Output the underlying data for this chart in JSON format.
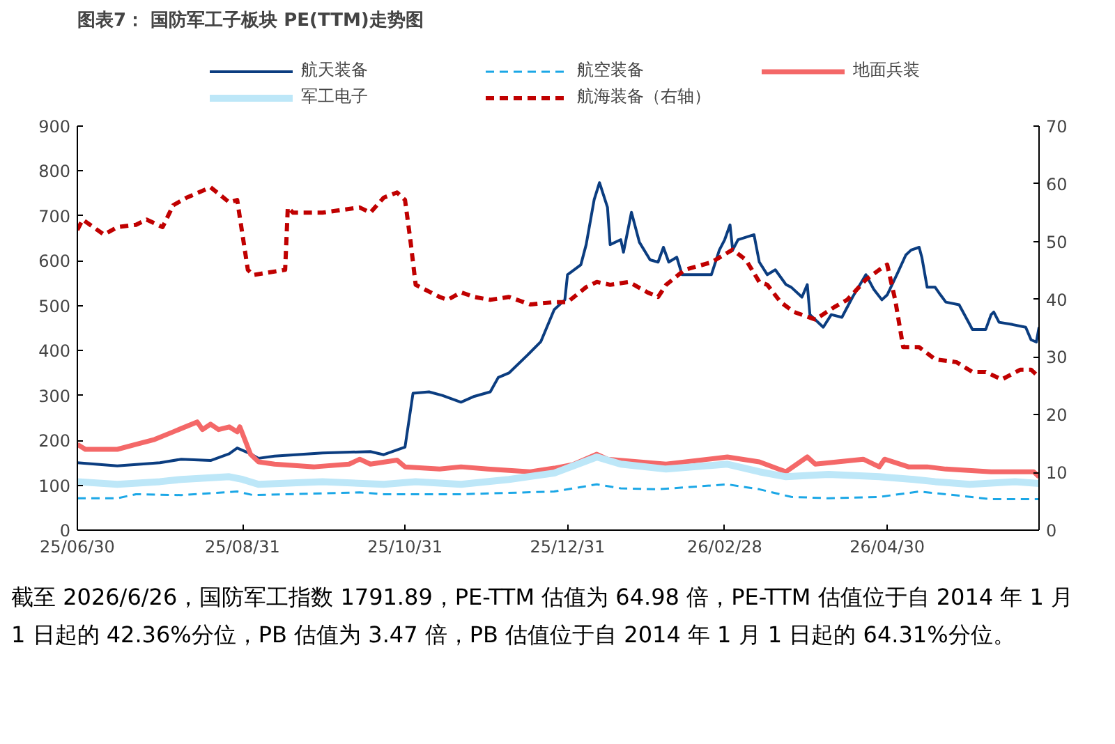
{
  "chart_data": {
    "type": "line",
    "title": "图表7：  国防军工子板块 PE(TTM)走势图",
    "annotations": [
      "截至 2026/6/26，国防军工指数 1791.89，PE-TTM 估值为 64.98 倍，PE-TTM 估值位于自 2014 年 1 月 1 日起的 42.36%分位，PB 估值为 3.47 倍，PB 估值位于自 2014 年 1 月 1 日起的 64.31%分位。"
    ],
    "xlim": [
      "2025-06-30",
      "2026-06-26"
    ],
    "xticks": [
      {
        "value": "2025-06-30",
        "label": "25/06/30"
      },
      {
        "value": "2025-08-31",
        "label": "25/08/31"
      },
      {
        "value": "2025-10-31",
        "label": "25/10/31"
      },
      {
        "value": "2025-12-31",
        "label": "25/12/31"
      },
      {
        "value": "2026-02-28",
        "label": "26/02/28"
      },
      {
        "value": "2026-04-30",
        "label": "26/04/30"
      }
    ],
    "ylim": [
      0,
      900
    ],
    "yticks": [
      0,
      100,
      200,
      300,
      400,
      500,
      600,
      700,
      800,
      900
    ],
    "y2lim": [
      0,
      70
    ],
    "y2ticks": [
      0,
      10,
      20,
      30,
      40,
      50,
      60,
      70
    ],
    "legend": "top",
    "grid": false,
    "series": [
      {
        "name": "航天装备",
        "color": "#0b3d80",
        "line_style": "solid",
        "x": [
          "2025-06-30",
          "2025-07-15",
          "2025-07-31",
          "2025-08-08",
          "2025-08-19",
          "2025-08-26",
          "2025-08-29",
          "2025-09-03",
          "2025-09-06",
          "2025-09-12",
          "2025-09-30",
          "2025-10-18",
          "2025-10-23",
          "2025-10-30",
          "2025-10-31",
          "2025-11-03",
          "2025-11-09",
          "2025-11-14",
          "2025-11-21",
          "2025-11-26",
          "2025-12-02",
          "2025-12-05",
          "2025-12-09",
          "2025-12-16",
          "2025-12-21",
          "2025-12-26",
          "2025-12-30",
          "2025-12-31",
          "2026-01-05",
          "2026-01-07",
          "2026-01-10",
          "2026-01-12",
          "2026-01-15",
          "2026-01-16",
          "2026-01-20",
          "2026-01-21",
          "2026-01-24",
          "2026-01-27",
          "2026-01-31",
          "2026-02-03",
          "2026-02-05",
          "2026-02-07",
          "2026-02-10",
          "2026-02-12",
          "2026-02-23",
          "2026-02-26",
          "2026-02-28",
          "2026-03-02",
          "2026-03-03",
          "2026-03-05",
          "2026-03-11",
          "2026-03-13",
          "2026-03-16",
          "2026-03-19",
          "2026-03-23",
          "2026-03-25",
          "2026-03-29",
          "2026-03-31",
          "2026-04-01",
          "2026-04-06",
          "2026-04-09",
          "2026-04-13",
          "2026-04-17",
          "2026-04-22",
          "2026-04-25",
          "2026-04-28",
          "2026-04-30",
          "2026-05-04",
          "2026-05-07",
          "2026-05-09",
          "2026-05-12",
          "2026-05-13",
          "2026-05-15",
          "2026-05-18",
          "2026-05-20",
          "2026-05-22",
          "2026-05-27",
          "2026-05-30",
          "2026-06-01",
          "2026-06-06",
          "2026-06-08",
          "2026-06-09",
          "2026-06-11",
          "2026-06-16",
          "2026-06-21",
          "2026-06-23",
          "2026-06-25",
          "2026-06-26"
        ],
        "values": [
          150,
          143,
          150,
          158,
          155,
          170,
          183,
          170,
          160,
          165,
          172,
          175,
          168,
          183,
          185,
          305,
          308,
          300,
          285,
          298,
          308,
          340,
          350,
          390,
          420,
          491,
          513,
          569,
          591,
          636,
          736,
          774,
          719,
          636,
          647,
          619,
          708,
          641,
          602,
          597,
          630,
          597,
          608,
          569,
          569,
          624,
          647,
          680,
          624,
          647,
          658,
          597,
          569,
          580,
          547,
          541,
          519,
          547,
          480,
          452,
          480,
          474,
          519,
          569,
          536,
          513,
          524,
          574,
          613,
          624,
          630,
          608,
          541,
          541,
          524,
          508,
          502,
          469,
          447,
          447,
          480,
          486,
          463,
          458,
          452,
          424,
          419,
          452
        ]
      },
      {
        "name": "航空装备",
        "color": "#1ba7e6",
        "line_style": "dashed",
        "x": [
          "2025-06-30",
          "2025-07-15",
          "2025-07-22",
          "2025-08-08",
          "2025-08-29",
          "2025-09-04",
          "2025-09-30",
          "2025-10-14",
          "2025-10-23",
          "2025-11-21",
          "2025-12-26",
          "2026-01-11",
          "2026-01-20",
          "2026-02-03",
          "2026-03-01",
          "2026-03-13",
          "2026-03-25",
          "2026-04-08",
          "2026-04-27",
          "2026-05-12",
          "2026-05-22",
          "2026-06-08",
          "2026-06-26"
        ],
        "values": [
          71,
          71,
          80,
          78,
          86,
          78,
          82,
          84,
          80,
          80,
          86,
          102,
          93,
          91,
          102,
          91,
          74,
          71,
          74,
          86,
          80,
          69,
          69
        ]
      },
      {
        "name": "地面兵装",
        "color": "#f46868",
        "line_style": "solid",
        "x": [
          "2025-06-30",
          "2025-07-03",
          "2025-07-15",
          "2025-07-22",
          "2025-07-29",
          "2025-08-05",
          "2025-08-14",
          "2025-08-16",
          "2025-08-19",
          "2025-08-22",
          "2025-08-26",
          "2025-08-29",
          "2025-08-30",
          "2025-09-03",
          "2025-09-06",
          "2025-09-12",
          "2025-09-27",
          "2025-10-10",
          "2025-10-14",
          "2025-10-18",
          "2025-10-28",
          "2025-10-31",
          "2025-11-13",
          "2025-11-21",
          "2025-12-01",
          "2025-12-17",
          "2025-12-26",
          "2026-01-02",
          "2026-01-11",
          "2026-01-15",
          "2026-02-06",
          "2026-03-01",
          "2026-03-13",
          "2026-03-23",
          "2026-03-31",
          "2026-04-03",
          "2026-04-21",
          "2026-04-27",
          "2026-04-29",
          "2026-05-08",
          "2026-05-15",
          "2026-05-22",
          "2026-06-08",
          "2026-06-24",
          "2026-06-26"
        ],
        "values": [
          191,
          180,
          180,
          191,
          202,
          219,
          241,
          224,
          236,
          224,
          230,
          219,
          230,
          169,
          152,
          147,
          141,
          147,
          158,
          147,
          156,
          141,
          136,
          141,
          136,
          130,
          138,
          146,
          169,
          158,
          147,
          163,
          152,
          130,
          163,
          147,
          158,
          141,
          158,
          141,
          141,
          136,
          130,
          130,
          119
        ]
      },
      {
        "name": "军工电子",
        "color": "#bde7f8",
        "line_style": "solid",
        "x": [
          "2025-06-30",
          "2025-07-15",
          "2025-07-31",
          "2025-08-08",
          "2025-08-26",
          "2025-08-31",
          "2025-09-06",
          "2025-09-30",
          "2025-10-23",
          "2025-11-04",
          "2025-11-21",
          "2025-12-09",
          "2025-12-26",
          "2026-01-11",
          "2026-01-20",
          "2026-02-06",
          "2026-03-01",
          "2026-03-13",
          "2026-03-23",
          "2026-04-08",
          "2026-04-27",
          "2026-05-10",
          "2026-05-18",
          "2026-05-31",
          "2026-06-17",
          "2026-06-26"
        ],
        "values": [
          108,
          102,
          108,
          113,
          119,
          113,
          102,
          108,
          102,
          108,
          102,
          113,
          127,
          163,
          147,
          136,
          147,
          130,
          119,
          124,
          119,
          113,
          108,
          102,
          108,
          104
        ]
      },
      {
        "name": "航海装备（右轴）",
        "color": "#c00000",
        "line_style": "dashed",
        "axis": "y2",
        "x": [
          "2025-06-30",
          "2025-07-02",
          "2025-07-10",
          "2025-07-15",
          "2025-07-22",
          "2025-07-26",
          "2025-08-01",
          "2025-08-05",
          "2025-08-10",
          "2025-08-19",
          "2025-08-26",
          "2025-08-29",
          "2025-09-02",
          "2025-09-04",
          "2025-09-16",
          "2025-09-17",
          "2025-09-19",
          "2025-09-30",
          "2025-10-14",
          "2025-10-18",
          "2025-10-23",
          "2025-10-28",
          "2025-10-31",
          "2025-11-02",
          "2025-11-04",
          "2025-11-13",
          "2025-11-16",
          "2025-11-21",
          "2025-11-26",
          "2025-12-02",
          "2025-12-09",
          "2025-12-17",
          "2025-12-26",
          "2025-12-31",
          "2026-01-07",
          "2026-01-11",
          "2026-01-16",
          "2026-01-23",
          "2026-01-30",
          "2026-02-03",
          "2026-02-06",
          "2026-02-13",
          "2026-02-23",
          "2026-03-03",
          "2026-03-08",
          "2026-03-13",
          "2026-03-16",
          "2026-03-21",
          "2026-03-26",
          "2026-04-03",
          "2026-04-10",
          "2026-04-15",
          "2026-04-22",
          "2026-04-27",
          "2026-04-30",
          "2026-05-03",
          "2026-05-06",
          "2026-05-12",
          "2026-05-18",
          "2026-05-26",
          "2026-06-01",
          "2026-06-06",
          "2026-06-12",
          "2026-06-19",
          "2026-06-23",
          "2026-06-26"
        ],
        "values": [
          52.0,
          53.8,
          51.2,
          52.5,
          52.9,
          53.8,
          52.5,
          56.3,
          57.6,
          59.4,
          56.8,
          57.2,
          45.1,
          44.2,
          45.1,
          55.9,
          55.0,
          55.0,
          55.9,
          55.0,
          57.6,
          58.5,
          57.2,
          50.3,
          42.5,
          40.4,
          39.9,
          41.2,
          40.4,
          39.9,
          40.4,
          39.1,
          39.5,
          39.5,
          42.1,
          43.0,
          42.5,
          43.0,
          41.2,
          40.4,
          42.5,
          45.1,
          46.4,
          48.6,
          46.8,
          43.0,
          42.5,
          39.5,
          37.8,
          36.5,
          38.6,
          39.9,
          43.4,
          45.1,
          46.0,
          39.9,
          31.7,
          31.7,
          29.6,
          29.1,
          27.4,
          27.4,
          26.1,
          27.8,
          27.8,
          26.5
        ]
      }
    ]
  }
}
